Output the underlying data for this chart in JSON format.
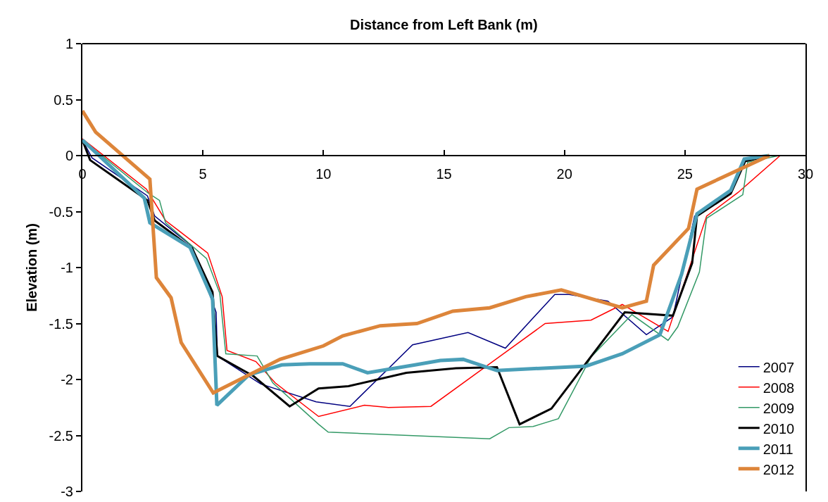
{
  "chart_data": {
    "type": "line",
    "xlabel": "Distance from Left Bank (m)",
    "ylabel": "Elevation (m)",
    "xlim": [
      0,
      30
    ],
    "xticks": [
      0,
      5,
      10,
      15,
      20,
      25,
      30
    ],
    "ylim": [
      -3,
      1
    ],
    "yticks": [
      -3,
      -2.5,
      -2,
      -1.5,
      -1,
      -0.5,
      0,
      0.5,
      1
    ],
    "grid": false,
    "legend": "bottom right",
    "marker": "none",
    "line_style": "solid",
    "series": [
      {
        "name": "2007",
        "color": "#000080",
        "x": [
          0,
          0.4,
          2.7,
          3.0,
          4.55,
          5.55,
          5.6,
          7.4,
          9.7,
          11.1,
          13.7,
          16.0,
          17.55,
          19.6,
          20.2,
          21.8,
          23.4,
          24.5,
          25.4,
          26.9
        ],
        "values": [
          0.14,
          -0.02,
          -0.36,
          -0.54,
          -0.81,
          -1.4,
          -1.79,
          -2.04,
          -2.2,
          -2.24,
          -1.69,
          -1.58,
          -1.72,
          -1.24,
          -1.24,
          -1.3,
          -1.6,
          -1.44,
          -0.54,
          -0.34
        ]
      },
      {
        "name": "2008",
        "color": "#ff0000",
        "x": [
          0,
          2.66,
          3.45,
          5.2,
          5.8,
          6.0,
          7.2,
          8.0,
          9.8,
          11.7,
          12.7,
          14.46,
          19.2,
          21.1,
          22.4,
          24.3,
          25.9,
          27.2,
          28.95
        ],
        "values": [
          0.15,
          -0.3,
          -0.58,
          -0.87,
          -1.26,
          -1.74,
          -1.84,
          -2.03,
          -2.33,
          -2.23,
          -2.25,
          -2.24,
          -1.5,
          -1.47,
          -1.33,
          -1.57,
          -0.54,
          -0.33,
          0
        ]
      },
      {
        "name": "2009",
        "color": "#339966",
        "x": [
          0,
          2.7,
          3.2,
          3.45,
          5.15,
          5.7,
          5.95,
          7.25,
          7.9,
          9.8,
          10.2,
          16.9,
          17.7,
          18.7,
          19.75,
          21.1,
          22.8,
          24.3,
          24.7,
          25.6,
          25.9,
          27.4,
          27.6,
          28.9
        ],
        "values": [
          0.14,
          -0.33,
          -0.4,
          -0.6,
          -0.92,
          -1.23,
          -1.77,
          -1.79,
          -2.03,
          -2.4,
          -2.47,
          -2.53,
          -2.43,
          -2.42,
          -2.35,
          -1.8,
          -1.42,
          -1.65,
          -1.53,
          -1.04,
          -0.56,
          -0.35,
          -0.06,
          0
        ]
      },
      {
        "name": "2010",
        "color": "#000000",
        "x": [
          0,
          0.32,
          2.7,
          3.0,
          4.56,
          5.4,
          5.6,
          7.1,
          8.6,
          9.8,
          11.04,
          13.44,
          15.5,
          17.2,
          18.14,
          19.46,
          22.5,
          24.5,
          25.3,
          25.5,
          26.9,
          27.5,
          28.5
        ],
        "values": [
          0.14,
          -0.04,
          -0.4,
          -0.58,
          -0.83,
          -1.22,
          -1.79,
          -1.97,
          -2.24,
          -2.08,
          -2.06,
          -1.94,
          -1.9,
          -1.89,
          -2.4,
          -2.26,
          -1.4,
          -1.43,
          -0.96,
          -0.54,
          -0.34,
          -0.05,
          0
        ]
      },
      {
        "name": "2011",
        "color": "#4a9fb8",
        "x": [
          0,
          2.57,
          2.8,
          4.47,
          5.4,
          5.58,
          6.9,
          8.27,
          9.44,
          10.8,
          11.83,
          13.8,
          14.85,
          15.8,
          17.2,
          20.9,
          22.4,
          23.96,
          24.86,
          25.5,
          26.9,
          27.46,
          28.5
        ],
        "values": [
          0.14,
          -0.38,
          -0.6,
          -0.82,
          -1.28,
          -2.23,
          -1.96,
          -1.87,
          -1.86,
          -1.86,
          -1.94,
          -1.87,
          -1.83,
          -1.82,
          -1.92,
          -1.88,
          -1.77,
          -1.6,
          -1.06,
          -0.52,
          -0.31,
          -0.03,
          0
        ]
      },
      {
        "name": "2012",
        "color": "#dd853a",
        "x": [
          0,
          0.55,
          2.8,
          3.07,
          3.68,
          4.1,
          5.43,
          8.2,
          10.0,
          10.8,
          12.36,
          13.88,
          15.37,
          16.9,
          18.4,
          19.87,
          22.4,
          23.4,
          23.7,
          25.15,
          25.5,
          28.5
        ],
        "values": [
          0.4,
          0.21,
          -0.21,
          -1.09,
          -1.27,
          -1.67,
          -2.12,
          -1.82,
          -1.7,
          -1.61,
          -1.52,
          -1.5,
          -1.39,
          -1.36,
          -1.26,
          -1.2,
          -1.36,
          -1.3,
          -0.98,
          -0.65,
          -0.3,
          0
        ]
      }
    ]
  }
}
